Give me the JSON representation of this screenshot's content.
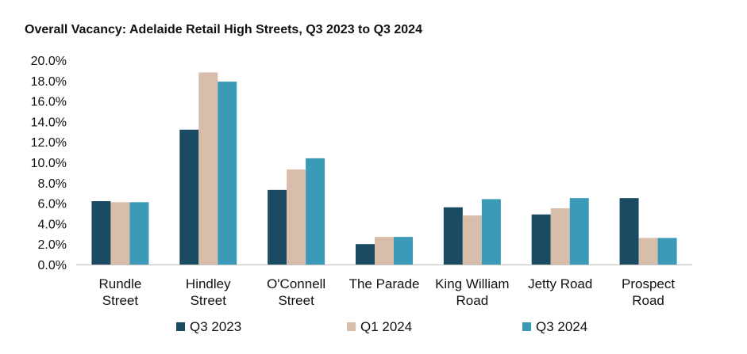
{
  "chart_data": {
    "type": "bar",
    "title": "Overall Vacancy: Adelaide Retail High Streets, Q3 2023 to Q3 2024",
    "xlabel": "",
    "ylabel": "",
    "ylim": [
      0,
      20
    ],
    "yticks": [
      0,
      2,
      4,
      6,
      8,
      10,
      12,
      14,
      16,
      18,
      20
    ],
    "ytick_labels": [
      "0.0%",
      "2.0%",
      "4.0%",
      "6.0%",
      "8.0%",
      "10.0%",
      "12.0%",
      "14.0%",
      "16.0%",
      "18.0%",
      "20.0%"
    ],
    "categories": [
      [
        "Rundle",
        "Street"
      ],
      [
        "Hindley",
        "Street"
      ],
      [
        "O'Connell",
        "Street"
      ],
      [
        "The Parade"
      ],
      [
        "King William",
        "Road"
      ],
      [
        "Jetty Road"
      ],
      [
        "Prospect",
        "Road"
      ]
    ],
    "series": [
      {
        "name": "Q3 2023",
        "color": "#1b4a63",
        "values": [
          6.2,
          13.2,
          7.3,
          2.0,
          5.6,
          4.9,
          6.5
        ]
      },
      {
        "name": "Q1 2024",
        "color": "#d8bdab",
        "values": [
          6.1,
          18.8,
          9.3,
          2.7,
          4.8,
          5.5,
          2.6
        ]
      },
      {
        "name": "Q3 2024",
        "color": "#3b9ab8",
        "values": [
          6.1,
          17.9,
          10.4,
          2.7,
          6.4,
          6.5,
          2.6
        ]
      }
    ],
    "grid": false,
    "legend": "bottom"
  }
}
